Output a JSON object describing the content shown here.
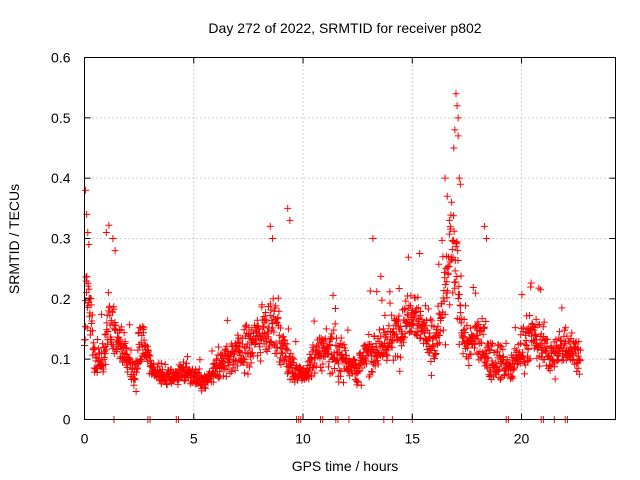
{
  "chart_data": {
    "type": "scatter",
    "title": "Day 272 of 2022, SRMTID for receiver p802",
    "xlabel": "GPS time / hours",
    "ylabel": "SRMTID / TECUs",
    "xlim": [
      0,
      24.3
    ],
    "ylim": [
      0,
      0.6
    ],
    "x_ticks": [
      0,
      5,
      10,
      15,
      20
    ],
    "x_tick_labels": [
      "0",
      "5",
      "10",
      "15",
      "20"
    ],
    "y_ticks": [
      0,
      0.1,
      0.2,
      0.3,
      0.4,
      0.5,
      0.6
    ],
    "y_tick_labels": [
      "0",
      "0.1",
      "0.2",
      "0.3",
      "0.4",
      "0.5",
      "0.6"
    ],
    "grid": true,
    "marker": "+",
    "color": "#ff0000",
    "series": [
      {
        "name": "SRMTID",
        "profile_x": [
          0,
          0.1,
          0.2,
          0.5,
          0.8,
          1.1,
          1.4,
          1.7,
          2.0,
          2.3,
          2.6,
          3.0,
          3.5,
          4.0,
          4.5,
          5.0,
          5.5,
          6.0,
          6.5,
          7.0,
          7.5,
          8.0,
          8.5,
          9.0,
          9.3,
          9.6,
          10.0,
          10.5,
          11.0,
          11.5,
          12.0,
          12.5,
          13.0,
          13.5,
          14.0,
          14.5,
          15.0,
          15.5,
          16.0,
          16.5,
          16.8,
          17.0,
          17.3,
          17.6,
          18.0,
          18.5,
          19.0,
          19.5,
          20.0,
          20.5,
          21.0,
          21.5,
          22.0,
          22.5,
          22.7
        ],
        "profile_mean": [
          0.12,
          0.22,
          0.2,
          0.1,
          0.1,
          0.14,
          0.15,
          0.12,
          0.1,
          0.07,
          0.14,
          0.09,
          0.07,
          0.07,
          0.08,
          0.07,
          0.06,
          0.08,
          0.1,
          0.11,
          0.12,
          0.14,
          0.16,
          0.13,
          0.1,
          0.08,
          0.07,
          0.1,
          0.12,
          0.11,
          0.1,
          0.08,
          0.11,
          0.12,
          0.13,
          0.15,
          0.19,
          0.15,
          0.12,
          0.2,
          0.28,
          0.24,
          0.15,
          0.12,
          0.14,
          0.1,
          0.1,
          0.08,
          0.12,
          0.14,
          0.12,
          0.1,
          0.13,
          0.11,
          0.1
        ],
        "profile_spread": [
          0.05,
          0.08,
          0.06,
          0.04,
          0.05,
          0.07,
          0.06,
          0.04,
          0.04,
          0.03,
          0.05,
          0.02,
          0.02,
          0.02,
          0.02,
          0.02,
          0.02,
          0.03,
          0.04,
          0.05,
          0.05,
          0.06,
          0.06,
          0.05,
          0.04,
          0.03,
          0.02,
          0.04,
          0.05,
          0.05,
          0.04,
          0.03,
          0.05,
          0.05,
          0.05,
          0.06,
          0.06,
          0.05,
          0.05,
          0.08,
          0.12,
          0.1,
          0.06,
          0.05,
          0.06,
          0.04,
          0.04,
          0.03,
          0.05,
          0.05,
          0.05,
          0.04,
          0.05,
          0.04,
          0.04
        ],
        "peaks": [
          {
            "x": 0.05,
            "y": 0.38
          },
          {
            "x": 0.1,
            "y": 0.34
          },
          {
            "x": 0.15,
            "y": 0.31
          },
          {
            "x": 0.2,
            "y": 0.29
          },
          {
            "x": 1.0,
            "y": 0.31
          },
          {
            "x": 1.3,
            "y": 0.3
          },
          {
            "x": 1.4,
            "y": 0.28
          },
          {
            "x": 8.5,
            "y": 0.32
          },
          {
            "x": 8.6,
            "y": 0.3
          },
          {
            "x": 9.3,
            "y": 0.35
          },
          {
            "x": 9.4,
            "y": 0.33
          },
          {
            "x": 13.2,
            "y": 0.3
          },
          {
            "x": 16.5,
            "y": 0.4
          },
          {
            "x": 16.6,
            "y": 0.37
          },
          {
            "x": 16.9,
            "y": 0.45
          },
          {
            "x": 16.95,
            "y": 0.48
          },
          {
            "x": 17.0,
            "y": 0.54
          },
          {
            "x": 17.05,
            "y": 0.52
          },
          {
            "x": 17.1,
            "y": 0.5
          },
          {
            "x": 17.1,
            "y": 0.47
          },
          {
            "x": 17.15,
            "y": 0.4
          },
          {
            "x": 17.2,
            "y": 0.39
          },
          {
            "x": 16.7,
            "y": 0.33
          },
          {
            "x": 16.8,
            "y": 0.36
          },
          {
            "x": 18.3,
            "y": 0.32
          },
          {
            "x": 18.4,
            "y": 0.3
          }
        ],
        "baseline_points_x": [
          1.35,
          2.9,
          3.0,
          4.2,
          4.3,
          9.7,
          9.8,
          9.9,
          10.8,
          10.9,
          11.5,
          11.6,
          12.1,
          13.7,
          14.1,
          15.0,
          19.3,
          19.4,
          20.9,
          21.0,
          21.5,
          22.0,
          22.1
        ]
      }
    ]
  }
}
